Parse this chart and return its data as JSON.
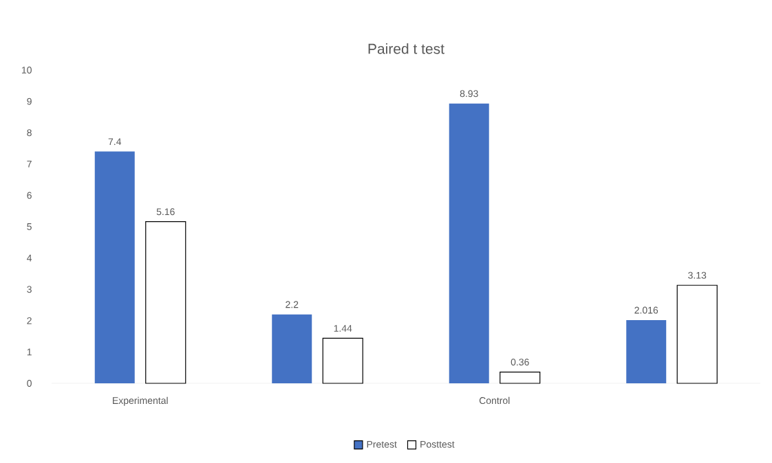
{
  "chart_data": {
    "type": "bar",
    "title": "Paired t test",
    "categories": [
      "Experimental",
      null,
      "Control",
      null
    ],
    "series": [
      {
        "name": "Pretest",
        "color": "#4472c4",
        "values": [
          7.4,
          2.2,
          8.93,
          2.016
        ]
      },
      {
        "name": "Posttest",
        "color": "#ffffff",
        "values": [
          5.16,
          1.44,
          0.36,
          3.13
        ]
      }
    ],
    "ylim": [
      0,
      10
    ],
    "yticks": [
      0,
      1,
      2,
      3,
      4,
      5,
      6,
      7,
      8,
      9,
      10
    ],
    "legend": "bottom",
    "data_labels": true
  }
}
